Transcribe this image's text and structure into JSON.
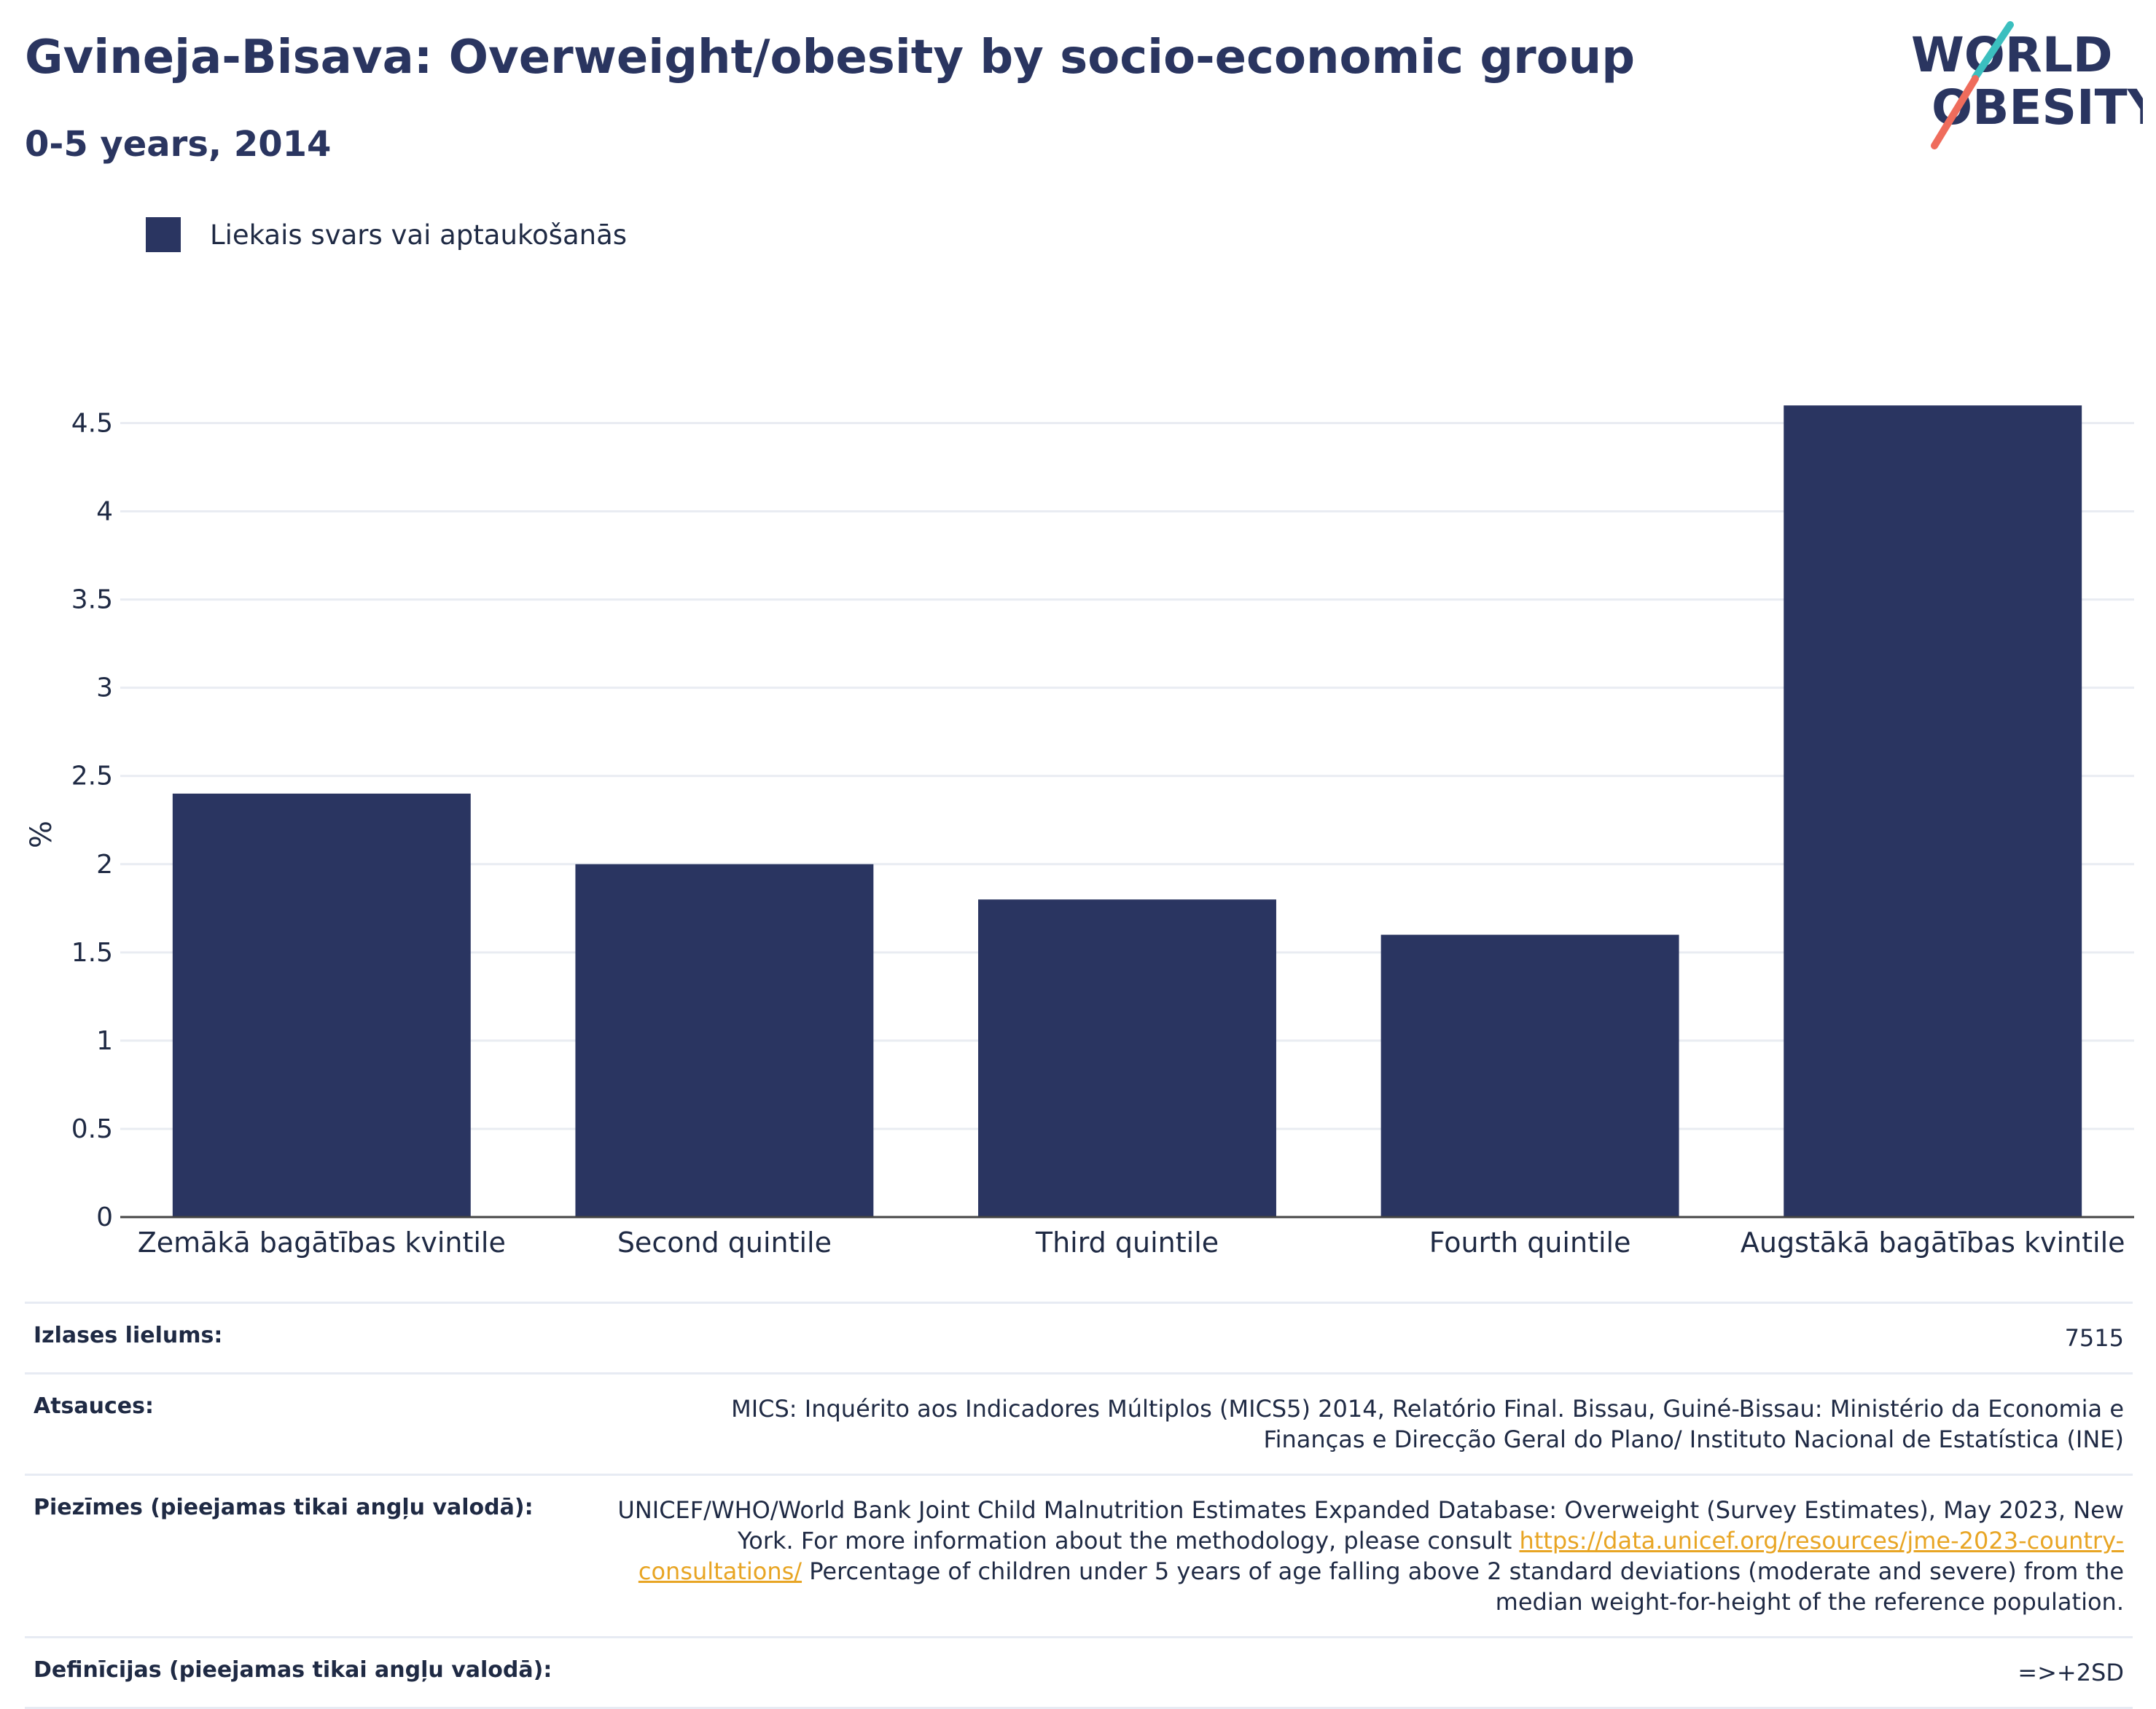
{
  "header": {
    "title": "Gvineja-Bisava: Overweight/obesity by socio-economic group",
    "subtitle": "0-5 years, 2014"
  },
  "logo": {
    "line1": "WORLD",
    "line2": "OBESITY"
  },
  "legend": {
    "label": "Liekais svars vai aptaukošanās",
    "color": "#2a3561"
  },
  "chart_data": {
    "type": "bar",
    "categories": [
      "Zemākā bagātības kvintile",
      "Second quintile",
      "Third quintile",
      "Fourth quintile",
      "Augstākā bagātības kvintile"
    ],
    "series": [
      {
        "name": "Liekais svars vai aptaukošanās",
        "values": [
          2.4,
          2.0,
          1.8,
          1.6,
          4.6
        ]
      }
    ],
    "ylabel": "%",
    "xlabel": "",
    "ylim": [
      0,
      4.75
    ],
    "yticks": [
      0,
      0.5,
      1,
      1.5,
      2,
      2.5,
      3,
      3.5,
      4,
      4.5
    ],
    "ytick_labels": [
      "0",
      "0.5",
      "1",
      "1.5",
      "2",
      "2.5",
      "3",
      "3.5",
      "4",
      "4.5"
    ],
    "grid": true,
    "legend_position": "top-left",
    "bar_color": "#2a3561"
  },
  "info": {
    "sample_label": "Izlases lielums:",
    "sample_value": "7515",
    "sources_label": "Atsauces:",
    "sources_value": "MICS: Inquérito aos Indicadores Múltiplos (MICS5) 2014, Relatório Final. Bissau, Guiné-Bissau: Ministério da Economia e Finanças e Direcção Geral do Plano/ Instituto Nacional de Estatística (INE)",
    "notes_label": "Piezīmes (pieejamas tikai angļu valodā):",
    "notes_text1": "UNICEF/WHO/World Bank Joint Child Malnutrition Estimates Expanded Database: Overweight (Survey Estimates), May 2023, New York. For more information about the methodology, please consult ",
    "notes_link": "https://data.unicef.org/resources/jme-2023-country-consultations/",
    "notes_text2": "Percentage of children under 5 years of age falling above 2 standard deviations (moderate and severe) from the median weight-for-height of the reference population.",
    "definitions_label": "Definīcijas (pieejamas tikai angļu valodā):",
    "definitions_value": "=>+2SD"
  }
}
